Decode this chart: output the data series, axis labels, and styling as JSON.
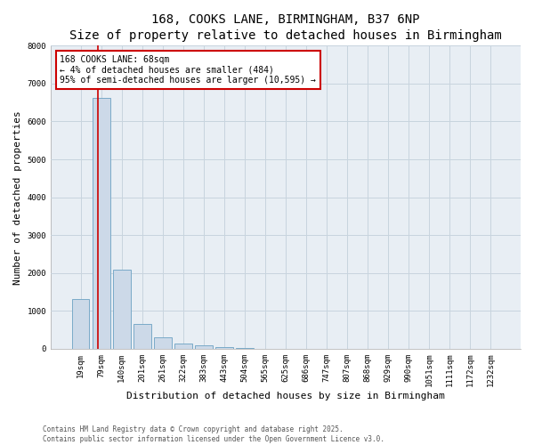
{
  "title": "168, COOKS LANE, BIRMINGHAM, B37 6NP",
  "subtitle": "Size of property relative to detached houses in Birmingham",
  "xlabel": "Distribution of detached houses by size in Birmingham",
  "ylabel": "Number of detached properties",
  "categories": [
    "19sqm",
    "79sqm",
    "140sqm",
    "201sqm",
    "261sqm",
    "322sqm",
    "383sqm",
    "443sqm",
    "504sqm",
    "565sqm",
    "625sqm",
    "686sqm",
    "747sqm",
    "807sqm",
    "868sqm",
    "929sqm",
    "990sqm",
    "1051sqm",
    "1111sqm",
    "1172sqm",
    "1232sqm"
  ],
  "values": [
    1310,
    6620,
    2090,
    650,
    295,
    130,
    88,
    48,
    25,
    8,
    5,
    3,
    2,
    1,
    1,
    0,
    0,
    0,
    0,
    0,
    0
  ],
  "bar_color": "#ccd9e8",
  "bar_edge_color": "#7aaac8",
  "grid_color": "#c8d4de",
  "background_color": "#e8eef4",
  "red_line_x": 0.83,
  "annotation_text": "168 COOKS LANE: 68sqm\n← 4% of detached houses are smaller (484)\n95% of semi-detached houses are larger (10,595) →",
  "annotation_box_color": "#ffffff",
  "annotation_border_color": "#cc0000",
  "footer_line1": "Contains HM Land Registry data © Crown copyright and database right 2025.",
  "footer_line2": "Contains public sector information licensed under the Open Government Licence v3.0.",
  "ylim": [
    0,
    8000
  ],
  "title_fontsize": 10,
  "subtitle_fontsize": 9,
  "tick_fontsize": 6.5,
  "ylabel_fontsize": 8,
  "xlabel_fontsize": 8,
  "annotation_fontsize": 7,
  "footer_fontsize": 5.5
}
